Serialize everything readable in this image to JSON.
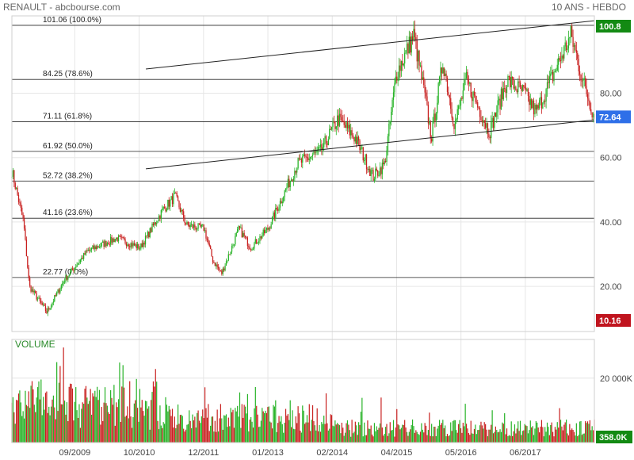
{
  "header": {
    "source": "RENAULT - abcbourse.com",
    "period": "10 ANS - HEBDO"
  },
  "chart_data": [
    {
      "type": "candlestick",
      "title": "RENAULT",
      "ylim": [
        6,
        104
      ],
      "y_ticks": [
        {
          "label": "80.00",
          "value": 80
        },
        {
          "label": "60.00",
          "value": 60
        },
        {
          "label": "40.00",
          "value": 40
        },
        {
          "label": "20.00",
          "value": 20
        }
      ],
      "x_ticks": [
        "09/2009",
        "10/2010",
        "12/2011",
        "01/2013",
        "02/2014",
        "04/2015",
        "05/2016",
        "06/2017"
      ],
      "price_path": [
        {
          "x": 0,
          "y": 56
        },
        {
          "x": 0.02,
          "y": 40
        },
        {
          "x": 0.03,
          "y": 20
        },
        {
          "x": 0.06,
          "y": 12
        },
        {
          "x": 0.09,
          "y": 22
        },
        {
          "x": 0.13,
          "y": 31
        },
        {
          "x": 0.18,
          "y": 35
        },
        {
          "x": 0.22,
          "y": 32
        },
        {
          "x": 0.26,
          "y": 44
        },
        {
          "x": 0.28,
          "y": 48
        },
        {
          "x": 0.3,
          "y": 39
        },
        {
          "x": 0.33,
          "y": 38
        },
        {
          "x": 0.345,
          "y": 28
        },
        {
          "x": 0.36,
          "y": 24
        },
        {
          "x": 0.39,
          "y": 38
        },
        {
          "x": 0.41,
          "y": 32
        },
        {
          "x": 0.44,
          "y": 38
        },
        {
          "x": 0.46,
          "y": 46
        },
        {
          "x": 0.49,
          "y": 58
        },
        {
          "x": 0.53,
          "y": 62
        },
        {
          "x": 0.56,
          "y": 72
        },
        {
          "x": 0.59,
          "y": 66
        },
        {
          "x": 0.62,
          "y": 54
        },
        {
          "x": 0.64,
          "y": 58
        },
        {
          "x": 0.66,
          "y": 86
        },
        {
          "x": 0.69,
          "y": 98
        },
        {
          "x": 0.71,
          "y": 78
        },
        {
          "x": 0.72,
          "y": 66
        },
        {
          "x": 0.74,
          "y": 90
        },
        {
          "x": 0.76,
          "y": 70
        },
        {
          "x": 0.78,
          "y": 84
        },
        {
          "x": 0.8,
          "y": 76
        },
        {
          "x": 0.82,
          "y": 68
        },
        {
          "x": 0.85,
          "y": 84
        },
        {
          "x": 0.88,
          "y": 80
        },
        {
          "x": 0.9,
          "y": 74
        },
        {
          "x": 0.93,
          "y": 86
        },
        {
          "x": 0.96,
          "y": 98
        },
        {
          "x": 0.98,
          "y": 84
        },
        {
          "x": 1.0,
          "y": 72.64
        }
      ],
      "last_price": {
        "label": "72.64",
        "value": 72.64,
        "color": "#2e6fe8"
      },
      "high_marker": {
        "label": "100.8",
        "value": 100.8,
        "color": "#138a13"
      },
      "low_marker": {
        "label": "10.16",
        "color": "#c0141e"
      },
      "fibonacci": [
        {
          "label": "101.06  (100.0%)",
          "value": 101.06
        },
        {
          "label": "84.25  (78.6%)",
          "value": 84.25
        },
        {
          "label": "71.11  (61.8%)",
          "value": 71.11
        },
        {
          "label": "61.92  (50.0%)",
          "value": 61.92
        },
        {
          "label": "52.72  (38.2%)",
          "value": 52.72
        },
        {
          "label": "41.16  (23.6%)",
          "value": 41.16
        },
        {
          "label": "22.77  (0.0%)",
          "value": 22.77
        }
      ],
      "trendlines": [
        {
          "from": {
            "x": 0.23,
            "y": 87.5
          },
          "to": {
            "x": 1.0,
            "y": 102.5
          }
        },
        {
          "from": {
            "x": 0.23,
            "y": 56.5
          },
          "to": {
            "x": 1.0,
            "y": 71.7
          }
        }
      ],
      "colors": {
        "up": "#27b327",
        "down": "#c8201f",
        "grid": "#e6e6e6",
        "line": "#222222"
      }
    },
    {
      "type": "bar",
      "title": "VOLUME",
      "y_ticks": [
        {
          "label": "20 000K",
          "value": 20000
        }
      ],
      "last_volume": {
        "label": "358.0K",
        "color": "#138a13"
      },
      "ylim": [
        0,
        32000
      ]
    }
  ]
}
